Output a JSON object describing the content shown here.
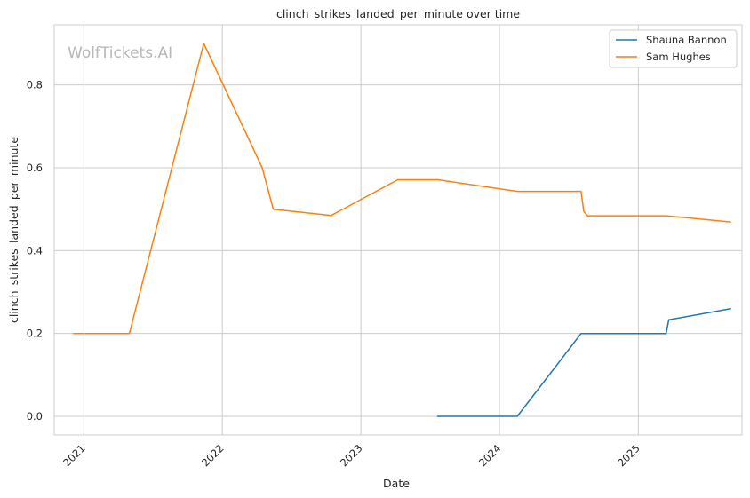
{
  "chart_data": {
    "type": "line",
    "title": "clinch_strikes_landed_per_minute over time",
    "xlabel": "Date",
    "ylabel": "clinch_strikes_landed_per_minute",
    "watermark": "WolfTickets.AI",
    "x_ticks": [
      "2021",
      "2022",
      "2023",
      "2024",
      "2025"
    ],
    "y_ticks": [
      "0.0",
      "0.2",
      "0.4",
      "0.6",
      "0.8"
    ],
    "xlim": [
      "2020-10-15",
      "2025-10-01"
    ],
    "ylim": [
      -0.045,
      0.945
    ],
    "grid": true,
    "legend_position": "top-right",
    "series": [
      {
        "name": "Shauna Bannon",
        "color": "#1f77b4",
        "points": [
          [
            "2023-07-22",
            0.0
          ],
          [
            "2024-02-17",
            0.0
          ],
          [
            "2024-08-03",
            0.2
          ],
          [
            "2025-03-15",
            0.2
          ],
          [
            "2025-03-22",
            0.233
          ],
          [
            "2025-09-01",
            0.26
          ]
        ]
      },
      {
        "name": "Sam Hughes",
        "color": "#ff7f0e",
        "points": [
          [
            "2020-12-05",
            0.2
          ],
          [
            "2021-05-01",
            0.2
          ],
          [
            "2021-11-13",
            0.9
          ],
          [
            "2022-04-16",
            0.6
          ],
          [
            "2022-05-15",
            0.5
          ],
          [
            "2022-10-15",
            0.485
          ],
          [
            "2023-04-08",
            0.571
          ],
          [
            "2023-07-22",
            0.571
          ],
          [
            "2024-02-17",
            0.543
          ],
          [
            "2024-08-03",
            0.543
          ],
          [
            "2024-08-10",
            0.495
          ],
          [
            "2024-08-20",
            0.484
          ],
          [
            "2025-03-15",
            0.484
          ],
          [
            "2025-09-01",
            0.469
          ]
        ]
      }
    ]
  }
}
